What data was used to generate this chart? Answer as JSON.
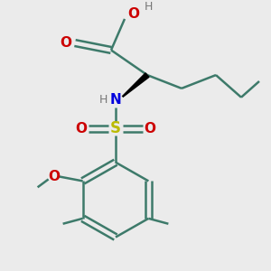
{
  "background_color": "#ebebeb",
  "colors": {
    "C": "#3d7a6a",
    "O": "#cc0000",
    "N": "#0000dd",
    "S": "#bbbb00",
    "H": "#777777",
    "bond": "#3d7a6a"
  },
  "layout": {
    "figsize": [
      3.0,
      3.0
    ],
    "dpi": 100
  }
}
